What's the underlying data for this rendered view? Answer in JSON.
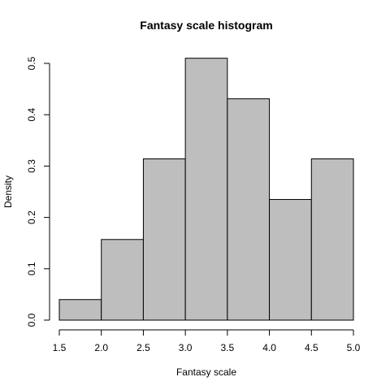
{
  "chart_data": {
    "type": "bar",
    "title": "Fantasy scale histogram",
    "xlabel": "Fantasy scale",
    "ylabel": "Density",
    "bins": [
      {
        "start": 1.5,
        "end": 2.0,
        "density": 0.04
      },
      {
        "start": 2.0,
        "end": 2.5,
        "density": 0.157
      },
      {
        "start": 2.5,
        "end": 3.0,
        "density": 0.314
      },
      {
        "start": 3.0,
        "end": 3.5,
        "density": 0.51
      },
      {
        "start": 3.5,
        "end": 4.0,
        "density": 0.431
      },
      {
        "start": 4.0,
        "end": 4.5,
        "density": 0.235
      },
      {
        "start": 4.5,
        "end": 5.0,
        "density": 0.314
      }
    ],
    "xlim": [
      1.5,
      5.0
    ],
    "ylim": [
      0.0,
      0.5
    ],
    "xticks": [
      "1.5",
      "2.0",
      "2.5",
      "3.0",
      "3.5",
      "4.0",
      "4.5",
      "5.0"
    ],
    "yticks": [
      "0.0",
      "0.1",
      "0.2",
      "0.3",
      "0.4",
      "0.5"
    ],
    "bar_color": "#bebebe",
    "edge_color": "#000000",
    "grid": false,
    "legend": "none"
  }
}
